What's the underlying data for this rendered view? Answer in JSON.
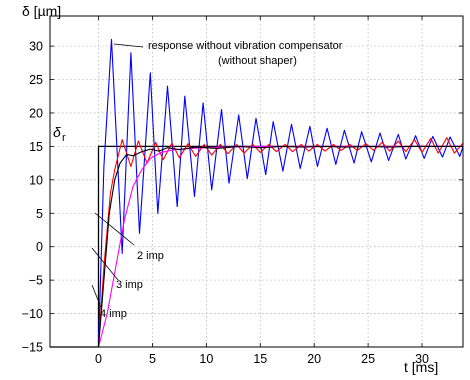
{
  "chart_data": {
    "type": "line",
    "title": "",
    "xlabel": "t [ms]",
    "ylabel": "δ [µm]",
    "xlim": [
      -4.5,
      33.8
    ],
    "ylim": [
      -15,
      34.5
    ],
    "grid": true,
    "x_ticks": [
      0,
      5,
      10,
      15,
      20,
      25,
      30
    ],
    "y_ticks": [
      -15,
      -10,
      -5,
      0,
      5,
      10,
      15,
      20,
      25,
      30
    ],
    "x_tick_labels": [
      "0",
      "5",
      "10",
      "15",
      "20",
      "25",
      "30"
    ],
    "y_tick_labels": [
      "−15",
      "−10",
      "−5",
      "0",
      "5",
      "10",
      "15",
      "20",
      "25",
      "30"
    ],
    "reference_label": {
      "main": "δ",
      "sub": "r"
    },
    "annotations": {
      "without_compensator_line1": "response without vibration compensator",
      "without_compensator_line2": "(without shaper)",
      "imp2": "2 imp",
      "imp3": "3 imp",
      "imp4": "4 imp"
    },
    "series": [
      {
        "color": "#000000",
        "role": "reference step",
        "x": [
          -4.5,
          0,
          0,
          33.8
        ],
        "y": [
          -15,
          -15,
          15,
          15
        ]
      },
      {
        "color": "#0000ff",
        "role": "response without vibration compensator",
        "x": [
          0,
          0.5,
          1.2,
          2.2,
          3.0,
          3.8,
          4.8,
          5.5,
          6.4,
          7.3,
          8.0,
          8.9,
          9.7,
          10.5,
          11.4,
          12.1,
          13.0,
          13.8,
          14.6,
          15.5,
          16.2,
          17.1,
          17.9,
          18.7,
          19.6,
          20.3,
          21.2,
          22.0,
          22.8,
          23.7,
          24.4,
          25.3,
          26.1,
          26.9,
          27.8,
          28.5,
          29.4,
          30.2,
          31.0,
          31.9,
          32.6,
          33.5,
          33.8
        ],
        "y": [
          -15,
          12,
          31,
          -1,
          29,
          2,
          26,
          5,
          24,
          6,
          22.5,
          7.5,
          21.5,
          8.5,
          20.5,
          9.5,
          19.7,
          10.2,
          19.2,
          10.8,
          18.7,
          11.3,
          18.3,
          11.7,
          18,
          12,
          17.7,
          12.3,
          17.4,
          12.5,
          17.2,
          12.7,
          17,
          12.9,
          16.8,
          13.1,
          16.6,
          13.2,
          16.5,
          13.4,
          16.4,
          13.5,
          15
        ]
      },
      {
        "color": "#ff0000",
        "role": "2 imp",
        "x": [
          0,
          0.5,
          1.1,
          1.5,
          2.2,
          3.0,
          3.7,
          4.5,
          5.3,
          6.0,
          6.8,
          7.5,
          8.3,
          9.0,
          9.8,
          10.5,
          11.3,
          12.0,
          12.8,
          13.5,
          14.3,
          15.0,
          15.8,
          16.5,
          17.3,
          18.0,
          18.8,
          19.5,
          20.3,
          21.0,
          21.8,
          22.5,
          23.3,
          24.0,
          24.8,
          25.5,
          26.3,
          27.0,
          27.8,
          28.5,
          29.3,
          30.0,
          30.8,
          31.5,
          32.3,
          33.0,
          33.8
        ],
        "y": [
          -15,
          -3,
          8,
          11.5,
          16,
          12,
          15.8,
          12.5,
          15.6,
          13,
          15.5,
          13.3,
          15.4,
          13.5,
          15.3,
          13.7,
          15.3,
          13.9,
          15.3,
          14,
          15.3,
          14.1,
          15.3,
          14.2,
          15.3,
          14.2,
          15.3,
          14.3,
          15.3,
          14.3,
          15.3,
          14.4,
          15.3,
          14.4,
          15.4,
          14.4,
          15.6,
          14.3,
          15.8,
          14.2,
          16,
          14.1,
          16.2,
          14,
          16.3,
          14,
          15.5
        ]
      },
      {
        "color": "#ff00ff",
        "role": "4 imp",
        "x": [
          0,
          0.8,
          1.6,
          2.4,
          3.2,
          4.0,
          4.8,
          5.8,
          7.0,
          8.5,
          10.0,
          12.0,
          15.0,
          20.0,
          25.0,
          30.0,
          33.8
        ],
        "y": [
          -15,
          -10,
          -3,
          4,
          9,
          11.5,
          13.2,
          14.1,
          14.5,
          14.7,
          14.8,
          14.9,
          15,
          15,
          15,
          15,
          15
        ]
      },
      {
        "color": "#000000",
        "role": "3 imp",
        "x": [
          0,
          0.5,
          1.0,
          1.5,
          2.0,
          2.6,
          3.2,
          4.0,
          4.8,
          5.6,
          6.4,
          7.5,
          9.0,
          11.0,
          13.0,
          15.0,
          17.0,
          19.0,
          21.0,
          23.0,
          25.0,
          27.0,
          29.0,
          31.0,
          33.8
        ],
        "y": [
          -15,
          -5,
          5,
          10,
          12.5,
          13.8,
          13.6,
          14.2,
          14.6,
          14.3,
          14.8,
          14.5,
          14.9,
          14.7,
          15,
          14.8,
          15,
          14.9,
          15,
          14.9,
          15,
          14.9,
          15,
          15,
          15
        ]
      }
    ]
  }
}
